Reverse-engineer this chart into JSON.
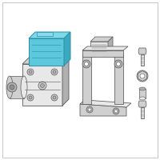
{
  "bg_color": "#ffffff",
  "border_color": "#c8c8c8",
  "line_color": "#555555",
  "blue_fill": "#5bc8dc",
  "blue_stroke": "#2a8fa8",
  "blue_top": "#7dd8e8",
  "blue_right": "#3aabbf",
  "gray_light": "#e8e8e8",
  "gray_mid": "#d0d0d0",
  "gray_dark": "#b0b0b0",
  "gray_stroke": "#666666",
  "white": "#ffffff"
}
